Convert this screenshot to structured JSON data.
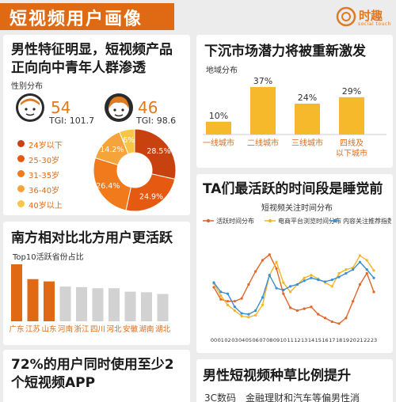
{
  "header": {
    "title": "短视频用户画像",
    "logo_text": "时趣",
    "logo_sub": "social touch"
  },
  "panel_gender": {
    "title_line1": "男性特征明显，短视频产品",
    "title_line2": "正向向中青年人群渗透",
    "subtitle": "性别分布",
    "male": {
      "value": "54",
      "tgi": "TGI: 101.7",
      "icon": "male-user-icon"
    },
    "female": {
      "value": "46",
      "tgi": "TGI: 98.6",
      "icon": "female-user-icon"
    },
    "age_legend": [
      "24岁以下",
      "25-30岁",
      "31-35岁",
      "36-40岁",
      "40岁以上"
    ]
  },
  "panel_city": {
    "title": "下沉市场潜力将被重新激发",
    "subtitle": "地域分布"
  },
  "panel_province": {
    "title": "南方相对比北方用户更活跃",
    "subtitle": "Top10活跃省份占比"
  },
  "panel_time": {
    "title": "TA们最活跃的时间段是睡觉前",
    "subtitle": "短视频关注时间分布"
  },
  "panel_app": {
    "title_line1": "72%的用户同时使用至少2",
    "title_line2": "个短视频APP"
  },
  "panel_grass": {
    "title": "男性短视频种草比例提升",
    "cut_text": "3C数码　金融理财和汽车等偏男性消"
  },
  "colors": {
    "accent": "#e07a1f",
    "deep": "#c8420f",
    "gray": "#d2d2d2",
    "blue": "#3a8fd0"
  },
  "chart_data": [
    {
      "type": "pie",
      "title": "",
      "categories": [
        "24岁以下",
        "25-30岁",
        "31-35岁",
        "36-40岁",
        "40岁以上"
      ],
      "values": [
        28.5,
        24.9,
        26.4,
        14.2,
        6
      ],
      "value_labels": [
        "28.5%",
        "24.9%",
        "26.4%",
        "14.2%",
        "6%"
      ],
      "colors": [
        "#c8420f",
        "#e55a10",
        "#f07a1c",
        "#f5a43c",
        "#f8c548"
      ]
    },
    {
      "type": "bar",
      "title": "地域分布",
      "categories": [
        "一线城市",
        "二线城市",
        "三线城市",
        "四线及以下城市"
      ],
      "values": [
        10,
        37,
        24,
        29
      ],
      "value_labels": [
        "10%",
        "37%",
        "24%",
        "29%"
      ],
      "ylim": [
        0,
        40
      ],
      "color": "#f7b92c"
    },
    {
      "type": "bar",
      "title": "Top10活跃省份占比",
      "categories": [
        "广东",
        "江苏",
        "山东",
        "河南",
        "浙江",
        "四川",
        "河北",
        "安徽",
        "湖南",
        "湖北"
      ],
      "values": [
        100,
        74,
        70,
        61,
        60,
        58,
        58,
        52,
        51,
        48
      ],
      "highlight_count": 3,
      "ylim": [
        0,
        100
      ],
      "colors": [
        "#e06a14",
        "#d2d2d2"
      ]
    },
    {
      "type": "line",
      "title": "短视频关注时间分布",
      "x": [
        "00",
        "01",
        "02",
        "03",
        "04",
        "05",
        "06",
        "07",
        "08",
        "09",
        "10",
        "11",
        "12",
        "13",
        "14",
        "15",
        "16",
        "17",
        "18",
        "19",
        "20",
        "21",
        "22",
        "23"
      ],
      "series": [
        {
          "name": "活跃时间分布",
          "color": "#e0662a",
          "values": [
            45,
            32,
            30,
            30,
            33,
            48,
            62,
            74,
            80,
            65,
            38,
            23,
            20,
            22,
            24,
            16,
            12,
            8,
            6,
            12,
            30,
            48,
            60,
            40
          ]
        },
        {
          "name": "电商平台浏览时间分布",
          "color": "#f4b52a",
          "values": [
            49,
            36,
            26,
            20,
            14,
            13,
            15,
            26,
            58,
            72,
            50,
            40,
            48,
            55,
            58,
            54,
            50,
            46,
            60,
            64,
            66,
            79,
            74,
            63
          ]
        },
        {
          "name": "内容关注推荐指数",
          "color": "#3a8fd0",
          "values": [
            50,
            40,
            38,
            24,
            17,
            16,
            20,
            34,
            58,
            44,
            42,
            46,
            48,
            52,
            55,
            53,
            51,
            53,
            56,
            60,
            64,
            72,
            64,
            55
          ]
        }
      ],
      "ylim": [
        0,
        90
      ]
    }
  ]
}
